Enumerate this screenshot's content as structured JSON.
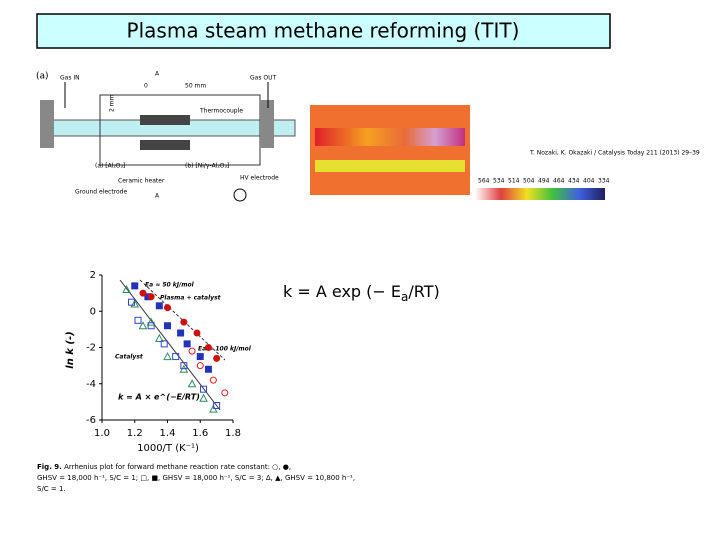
{
  "title": "Plasma steam methane reforming (TIT)",
  "equation": {
    "prefix": "k = A exp (− E",
    "subscript": "a",
    "suffix": "/RT)"
  },
  "reactor_diagram": {
    "panel": "(a)",
    "gas_in": "Gas IN",
    "gas_out": "Gas OUT",
    "length": "50 mm",
    "gap": "2 mm",
    "zero": "0",
    "thermocouple": "Thermocouple",
    "bed_a": "(a) [Al₂O₃]",
    "bed_b": "(b) [Ni/γ-Al₂O₃]",
    "heater": "Ceramic heater",
    "hv": "HV electrode",
    "ground": "Ground electrode",
    "section_top": "A",
    "section_bottom": "A"
  },
  "thermal_image": {
    "credit": "T. Nozaki, K. Okazaki / Catalysis Today 211 (2013) 29–39",
    "scale": [
      "564",
      "534",
      "514",
      "504",
      "494",
      "464",
      "434",
      "404",
      "334"
    ]
  },
  "arrhenius_plot": {
    "y_label": "ln k (-)",
    "x_label": "1000/T (K⁻¹)",
    "xlim": [
      1.0,
      1.8
    ],
    "ylim": [
      -6,
      2
    ],
    "xticks": [
      {
        "value": 1.0,
        "label": "1.0"
      },
      1.2,
      1.4,
      1.6,
      {
        "value": 1.8,
        "label": "1.8"
      }
    ],
    "yticks": [
      2,
      0,
      -2,
      -4,
      -6
    ],
    "annotations": {
      "ea_low": "Ea ≈ 50 kJ/mol",
      "plasma": "Plasma + catalyst",
      "catalyst": "Catalyst",
      "ea_high": "Ea ≈ 100 kJ/mol",
      "formula": "k = A × e^(−E/RT)"
    },
    "series": [
      {
        "marker": "triangle-open",
        "color": "#2e8b57",
        "x": [
          1.15,
          1.2,
          1.25,
          1.3,
          1.35,
          1.4,
          1.5,
          1.55,
          1.62,
          1.68
        ],
        "y": [
          1.2,
          0.4,
          -0.8,
          -0.6,
          -1.5,
          -2.5,
          -3.2,
          -4.0,
          -4.8,
          -5.4
        ]
      },
      {
        "marker": "square-open",
        "color": "#3344cc",
        "x": [
          1.18,
          1.22,
          1.3,
          1.38,
          1.45,
          1.5,
          1.62,
          1.7
        ],
        "y": [
          0.5,
          -0.5,
          -0.8,
          -1.8,
          -2.5,
          -3.0,
          -4.3,
          -5.2
        ]
      },
      {
        "marker": "square-filled",
        "color": "#2233bb",
        "x": [
          1.2,
          1.28,
          1.35,
          1.4,
          1.48,
          1.52,
          1.6,
          1.65
        ],
        "y": [
          1.4,
          0.8,
          0.3,
          -0.8,
          -1.2,
          -1.8,
          -2.5,
          -3.2
        ]
      },
      {
        "marker": "circle-filled",
        "color": "#cc1111",
        "x": [
          1.25,
          1.3,
          1.4,
          1.5,
          1.58,
          1.65,
          1.7
        ],
        "y": [
          1.0,
          0.8,
          0.2,
          -0.6,
          -1.2,
          -2.0,
          -2.6
        ]
      },
      {
        "marker": "circle-open",
        "color": "#dd2222",
        "x": [
          1.55,
          1.6,
          1.68,
          1.75
        ],
        "y": [
          -2.2,
          -3.0,
          -3.8,
          -4.5
        ]
      }
    ],
    "caption": {
      "lead": "Fig. 9.",
      "line1": "Arrhenius plot for forward methane reaction rate constant: ○, ●,",
      "line2": "GHSV = 18,000 h⁻¹, S/C = 1; □, ■, GHSV = 18,000 h⁻¹, S/C = 3; Δ, ▲, GHSV = 10,800 h⁻¹,",
      "line3": "S/C = 1."
    }
  }
}
